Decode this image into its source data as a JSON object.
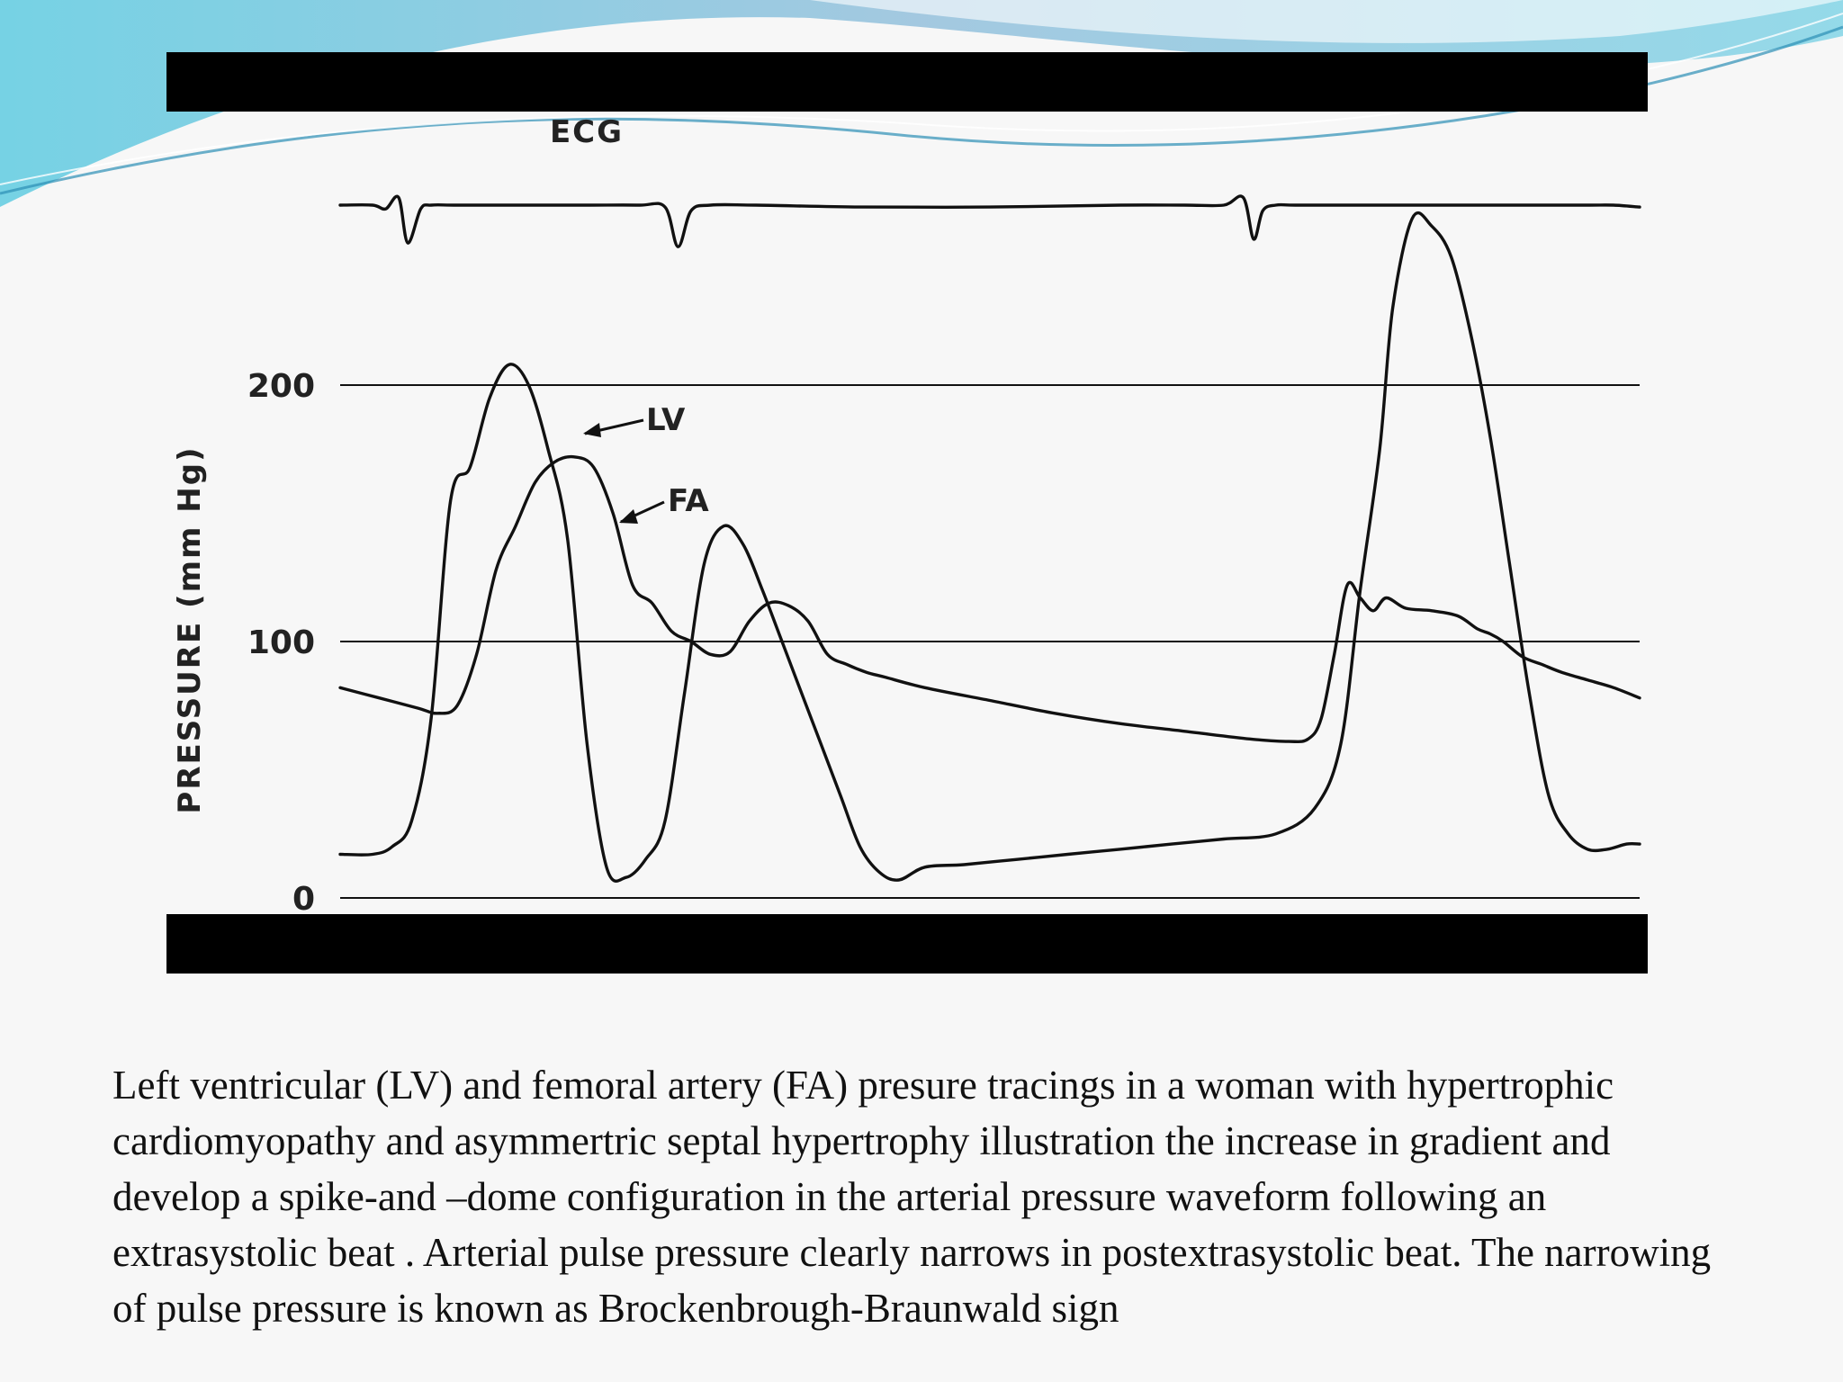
{
  "caption": "Left ventricular (LV) and femoral artery (FA) presure tracings in a woman with hypertrophic cardiomyopathy and asymmertric septal hypertrophy illustration the increase in gradient and develop a spike-and –dome configuration in the arterial pressure waveform following an extrasystolic beat . Arterial pulse pressure clearly narrows in postextrasystolic beat. The narrowing of pulse pressure is known as Brockenbrough-Braunwald sign",
  "colors": {
    "accent_light": "#7fd3e6",
    "accent_dark": "#3aa7c9",
    "ink": "#111111",
    "background": "#f7f7f7"
  },
  "chart_data": {
    "type": "line",
    "ecg_label": "ECG",
    "ylabel": "PRESSURE (mm Hg)",
    "xlabel": "",
    "ylim": [
      0,
      200
    ],
    "yticks": [
      {
        "value": 0,
        "label": "0"
      },
      {
        "value": 100,
        "label": "100"
      },
      {
        "value": 200,
        "label": "200"
      }
    ],
    "grid": true,
    "x_range": [
      0,
      100
    ],
    "series": [
      {
        "name": "LV",
        "x": [
          0,
          2.5,
          4,
          5.5,
          7,
          8.5,
          10,
          11.5,
          13,
          14.5,
          16,
          17.5,
          19,
          20.5,
          22,
          23.5,
          25,
          26.5,
          28,
          29.5,
          31,
          32.5,
          34,
          35.5,
          37,
          38.5,
          40,
          41.5,
          43,
          45,
          48,
          52,
          56,
          60,
          64,
          68,
          72,
          75,
          77,
          78.5,
          80,
          81,
          82.5,
          84,
          85.5,
          87,
          88.5,
          90,
          91.5,
          93,
          94.5,
          96,
          97.5,
          99,
          100
        ],
        "values": [
          17,
          17,
          20,
          30,
          70,
          155,
          168,
          195,
          208,
          200,
          175,
          140,
          60,
          12,
          8,
          15,
          30,
          80,
          130,
          145,
          138,
          120,
          100,
          80,
          60,
          40,
          20,
          10,
          7,
          12,
          13,
          15,
          17,
          19,
          21,
          23,
          25,
          35,
          60,
          120,
          175,
          230,
          265,
          262,
          250,
          220,
          180,
          130,
          80,
          40,
          25,
          19,
          19,
          21,
          21
        ]
      },
      {
        "name": "FA",
        "x": [
          0,
          3,
          6,
          7.5,
          9,
          10.5,
          12,
          13.5,
          15,
          16.5,
          18,
          19.5,
          21,
          22.5,
          24,
          25.5,
          27,
          28.5,
          30,
          31.5,
          33,
          34.5,
          36,
          37.5,
          39,
          40.5,
          42,
          45,
          50,
          55,
          60,
          65,
          70,
          73,
          74.5,
          75.5,
          76.5,
          77.5,
          78.5,
          79.5,
          80.5,
          82,
          84,
          86,
          87.5,
          88.5,
          89.5,
          91,
          92.5,
          94,
          96,
          98,
          100
        ],
        "values": [
          82,
          78,
          74,
          72,
          75,
          95,
          128,
          145,
          162,
          170,
          172,
          168,
          150,
          122,
          115,
          104,
          100,
          95,
          96,
          108,
          115,
          114,
          108,
          95,
          91,
          88,
          86,
          82,
          77,
          72,
          68,
          65,
          62,
          61,
          62,
          70,
          95,
          122,
          117,
          112,
          117,
          113,
          112,
          110,
          105,
          103,
          100,
          94,
          91,
          88,
          85,
          82,
          78
        ]
      }
    ],
    "ecg": {
      "x": [
        0,
        2.5,
        3.5,
        4.5,
        5.2,
        6.2,
        7,
        9,
        14,
        19,
        23,
        25,
        26,
        27,
        28.5,
        32,
        40,
        50,
        60,
        65,
        68,
        69.5,
        70.3,
        71,
        72,
        73.5,
        78,
        85,
        92,
        96,
        98,
        100
      ],
      "values": [
        0,
        0,
        -2,
        4,
        -20,
        -2,
        0,
        0,
        0,
        0,
        0,
        -1,
        -22,
        -3,
        0,
        0,
        -1,
        -1,
        0,
        0,
        0,
        4,
        -18,
        -3,
        0,
        0,
        0,
        0,
        0,
        0,
        0,
        -1
      ]
    },
    "annotations": [
      {
        "text": "LV",
        "target_series": "LV"
      },
      {
        "text": "FA",
        "target_series": "FA"
      }
    ]
  }
}
